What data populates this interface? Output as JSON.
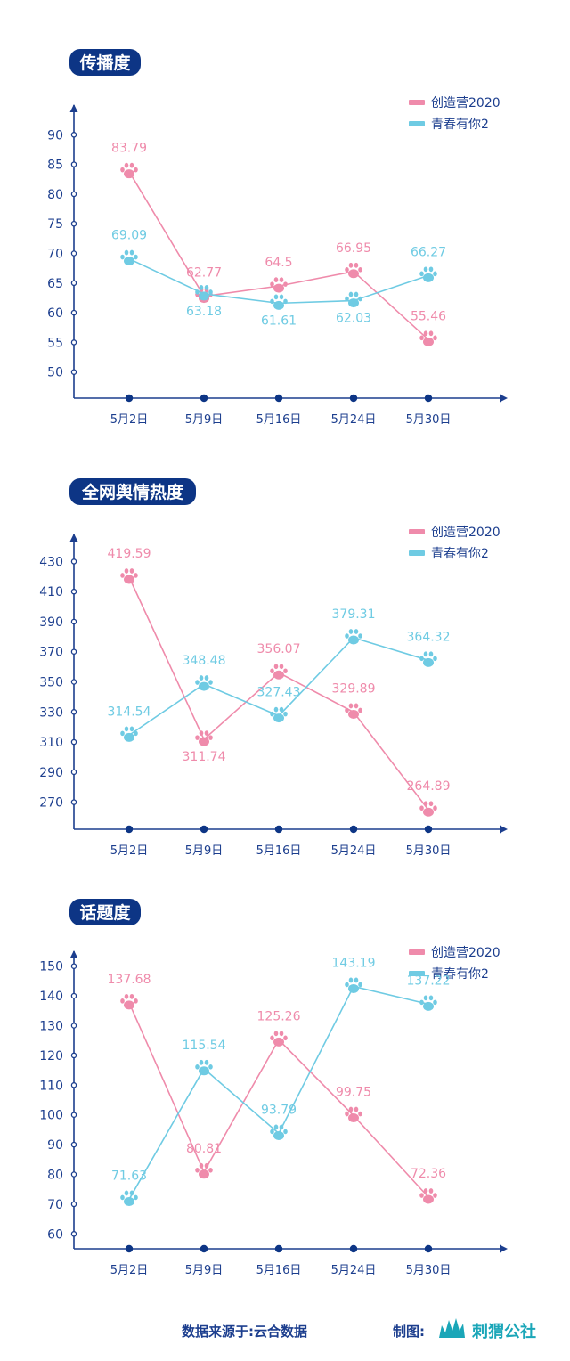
{
  "colors": {
    "series_a": "#ef8bab",
    "series_b": "#6fcbe3",
    "axis": "#1c3e8e",
    "title_bg": "#0d3585"
  },
  "chart_data": [
    {
      "type": "line",
      "title": "传播度",
      "categories": [
        "5月2日",
        "5月9日",
        "5月16日",
        "5月24日",
        "5月30日"
      ],
      "yticks": [
        50,
        55,
        60,
        65,
        70,
        75,
        80,
        85,
        90
      ],
      "ylim": [
        45.6,
        95
      ],
      "legend": "top-right",
      "series": [
        {
          "name": "创造营2020",
          "color": "#ef8bab",
          "values": [
            83.79,
            62.77,
            64.5,
            66.95,
            55.46
          ]
        },
        {
          "name": "青春有你2",
          "color": "#6fcbe3",
          "values": [
            69.09,
            63.18,
            61.61,
            62.03,
            66.27
          ]
        }
      ]
    },
    {
      "type": "line",
      "title": "全网舆情热度",
      "categories": [
        "5月2日",
        "5月9日",
        "5月16日",
        "5月24日",
        "5月30日"
      ],
      "yticks": [
        270,
        290,
        310,
        330,
        350,
        370,
        390,
        410,
        430
      ],
      "ylim": [
        252,
        448
      ],
      "legend": "top-right",
      "series": [
        {
          "name": "创造营2020",
          "color": "#ef8bab",
          "values": [
            419.59,
            311.74,
            356.07,
            329.89,
            264.89
          ]
        },
        {
          "name": "青春有你2",
          "color": "#6fcbe3",
          "values": [
            314.54,
            348.48,
            327.43,
            379.31,
            364.32
          ]
        }
      ]
    },
    {
      "type": "line",
      "title": "话题度",
      "categories": [
        "5月2日",
        "5月9日",
        "5月16日",
        "5月24日",
        "5月30日"
      ],
      "yticks": [
        60,
        70,
        80,
        90,
        100,
        110,
        120,
        130,
        140,
        150
      ],
      "ylim": [
        55,
        155
      ],
      "legend": "top-right",
      "series": [
        {
          "name": "创造营2020",
          "color": "#ef8bab",
          "values": [
            137.68,
            80.81,
            125.26,
            99.75,
            72.36
          ]
        },
        {
          "name": "青春有你2",
          "color": "#6fcbe3",
          "values": [
            71.63,
            115.54,
            93.79,
            143.19,
            137.22
          ]
        }
      ]
    }
  ],
  "footer": {
    "source": "数据来源于:云合数据",
    "credit_label": "制图:",
    "brand": "刺猬公社",
    "brand_logo_icon": "hedgehog-logo-icon"
  }
}
